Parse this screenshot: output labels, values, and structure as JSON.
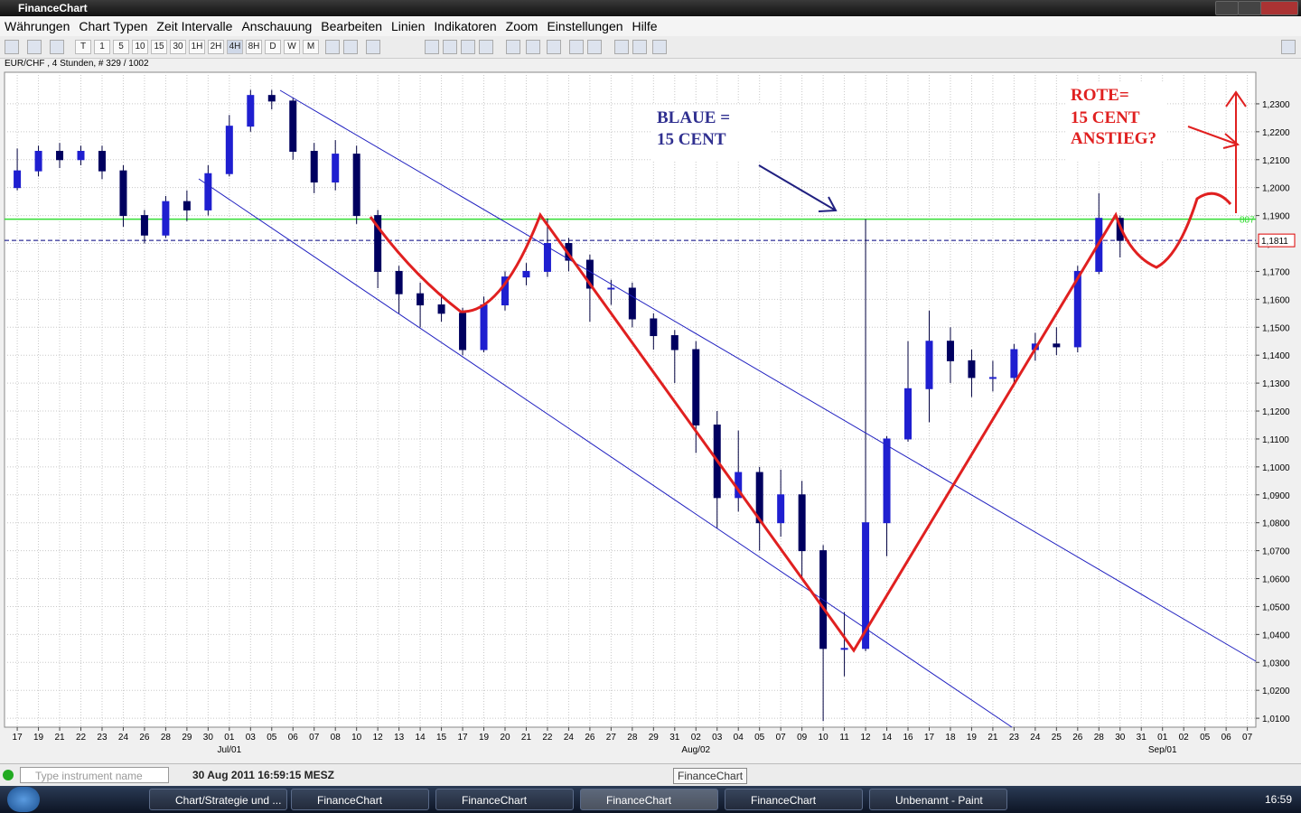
{
  "window": {
    "title": "FinanceChart"
  },
  "menu": [
    "Währungen",
    "Chart Typen",
    "Zeit Intervalle",
    "Anschauung",
    "Bearbeiten",
    "Linien",
    "Indikatoren",
    "Zoom",
    "Einstellungen",
    "Hilfe"
  ],
  "toolbar": {
    "timeframes": [
      "T",
      "1",
      "5",
      "10",
      "15",
      "30",
      "1H",
      "2H",
      "4H",
      "8H",
      "D",
      "W",
      "M"
    ]
  },
  "chart_info": "EUR/CHF , 4 Stunden, # 329 / 1002",
  "chart_data": {
    "type": "candlestick",
    "categories": [
      "17",
      "19",
      "21",
      "22",
      "23",
      "24",
      "26",
      "28",
      "29",
      "30",
      "01",
      "03",
      "05",
      "06",
      "07",
      "08",
      "10",
      "12",
      "13",
      "14",
      "15",
      "17",
      "19",
      "20",
      "21",
      "22",
      "24",
      "26",
      "27",
      "28",
      "29",
      "31",
      "02",
      "03",
      "04",
      "05",
      "07",
      "09",
      "10",
      "11",
      "12",
      "14",
      "16",
      "17",
      "18",
      "19",
      "21",
      "23",
      "24",
      "25",
      "26",
      "28",
      "30",
      "31",
      "01",
      "02",
      "05",
      "06",
      "07"
    ],
    "month_labels": [
      {
        "index": 10,
        "label": "Jul/01"
      },
      {
        "index": 32,
        "label": "Aug/02"
      },
      {
        "index": 54,
        "label": "Sep/01"
      }
    ],
    "open": [
      1.2,
      1.206,
      1.213,
      1.21,
      1.213,
      1.206,
      1.19,
      1.183,
      1.195,
      1.192,
      1.205,
      1.222,
      1.233,
      1.231,
      1.213,
      1.202,
      1.212,
      1.19,
      1.17,
      1.162,
      1.158,
      1.155,
      1.142,
      1.158,
      1.168,
      1.17,
      1.18,
      1.174,
      1.164,
      1.164,
      1.153,
      1.147,
      1.142,
      1.115,
      1.089,
      1.098,
      1.08,
      1.09,
      1.07,
      1.035,
      1.035,
      1.08,
      1.11,
      1.128,
      1.145,
      1.138,
      1.132,
      1.132,
      1.142,
      1.144,
      1.143,
      1.17,
      1.189,
      null,
      null,
      null,
      null,
      null,
      null
    ],
    "high": [
      1.214,
      1.215,
      1.216,
      1.215,
      1.215,
      1.208,
      1.192,
      1.197,
      1.199,
      1.208,
      1.226,
      1.235,
      1.235,
      1.232,
      1.216,
      1.217,
      1.215,
      1.192,
      1.172,
      1.166,
      1.162,
      1.157,
      1.161,
      1.17,
      1.173,
      1.189,
      1.182,
      1.176,
      1.167,
      1.166,
      1.155,
      1.149,
      1.145,
      1.12,
      1.113,
      1.1,
      1.099,
      1.095,
      1.072,
      1.048,
      1.1887,
      1.111,
      1.145,
      1.156,
      1.15,
      1.142,
      1.138,
      1.144,
      1.148,
      1.15,
      1.172,
      1.198,
      1.19,
      null,
      null,
      null,
      null,
      null,
      null
    ],
    "low": [
      1.199,
      1.204,
      1.207,
      1.208,
      1.203,
      1.186,
      1.18,
      1.182,
      1.188,
      1.19,
      1.204,
      1.22,
      1.228,
      1.21,
      1.198,
      1.199,
      1.187,
      1.164,
      1.155,
      1.15,
      1.152,
      1.14,
      1.141,
      1.156,
      1.165,
      1.168,
      1.17,
      1.152,
      1.158,
      1.15,
      1.142,
      1.13,
      1.105,
      1.078,
      1.084,
      1.07,
      1.075,
      1.06,
      1.009,
      1.025,
      1.034,
      1.068,
      1.109,
      1.116,
      1.13,
      1.125,
      1.127,
      1.129,
      1.138,
      1.14,
      1.141,
      1.169,
      1.175,
      null,
      null,
      null,
      null,
      null,
      null
    ],
    "close": [
      1.206,
      1.213,
      1.21,
      1.213,
      1.206,
      1.19,
      1.183,
      1.195,
      1.192,
      1.205,
      1.222,
      1.233,
      1.231,
      1.213,
      1.202,
      1.212,
      1.19,
      1.17,
      1.162,
      1.158,
      1.155,
      1.142,
      1.158,
      1.168,
      1.17,
      1.18,
      1.174,
      1.164,
      1.164,
      1.153,
      1.147,
      1.142,
      1.115,
      1.089,
      1.098,
      1.08,
      1.09,
      1.07,
      1.035,
      1.035,
      1.08,
      1.11,
      1.128,
      1.145,
      1.138,
      1.132,
      1.132,
      1.142,
      1.144,
      1.143,
      1.17,
      1.189,
      1.1811,
      null,
      null,
      null,
      null,
      null,
      null
    ],
    "up_color": "#1f1fd0",
    "down_color": "#000060",
    "wick_color": "#000040",
    "ylim": [
      1.0068,
      1.2413
    ],
    "yticks": [
      {
        "value": 1.01,
        "label": "1,0100"
      },
      {
        "value": 1.02,
        "label": "1,0200"
      },
      {
        "value": 1.03,
        "label": "1,0300"
      },
      {
        "value": 1.04,
        "label": "1,0400"
      },
      {
        "value": 1.05,
        "label": "1,0500"
      },
      {
        "value": 1.06,
        "label": "1,0600"
      },
      {
        "value": 1.07,
        "label": "1,0700"
      },
      {
        "value": 1.08,
        "label": "1,0800"
      },
      {
        "value": 1.09,
        "label": "1,0900"
      },
      {
        "value": 1.1,
        "label": "1,1000"
      },
      {
        "value": 1.11,
        "label": "1,1100"
      },
      {
        "value": 1.12,
        "label": "1,1200"
      },
      {
        "value": 1.13,
        "label": "1,1300"
      },
      {
        "value": 1.14,
        "label": "1,1400"
      },
      {
        "value": 1.15,
        "label": "1,1500"
      },
      {
        "value": 1.16,
        "label": "1,1600"
      },
      {
        "value": 1.17,
        "label": "1,1700"
      },
      {
        "value": 1.18,
        "label": "1,1800"
      },
      {
        "value": 1.19,
        "label": "1,1900"
      },
      {
        "value": 1.2,
        "label": "1,2000"
      },
      {
        "value": 1.21,
        "label": "1,2100"
      },
      {
        "value": 1.22,
        "label": "1,2200"
      },
      {
        "value": 1.23,
        "label": "1,2300"
      }
    ],
    "grid": true,
    "hlines": [
      {
        "value": 1.1887,
        "label": "887",
        "color": "#33dd33",
        "dashed": false
      },
      {
        "value": 1.1811,
        "label": "1,1811",
        "color": "#000080",
        "dashed": true
      }
    ],
    "annotations": {
      "blue": [
        "BLAUE =",
        "15 CENT"
      ],
      "red": [
        "ROTE=",
        "15 CENT",
        "ANSTIEG?"
      ]
    }
  },
  "status": {
    "search_placeholder": "Type instrument name",
    "datetime": "30 Aug 2011 16:59:15 MESZ"
  },
  "tooltip": "FinanceChart",
  "taskbar": {
    "items": [
      "Chart/Strategie und ...",
      "FinanceChart",
      "FinanceChart",
      "FinanceChart",
      "FinanceChart",
      "Unbenannt - Paint"
    ],
    "clock": "16:59"
  }
}
